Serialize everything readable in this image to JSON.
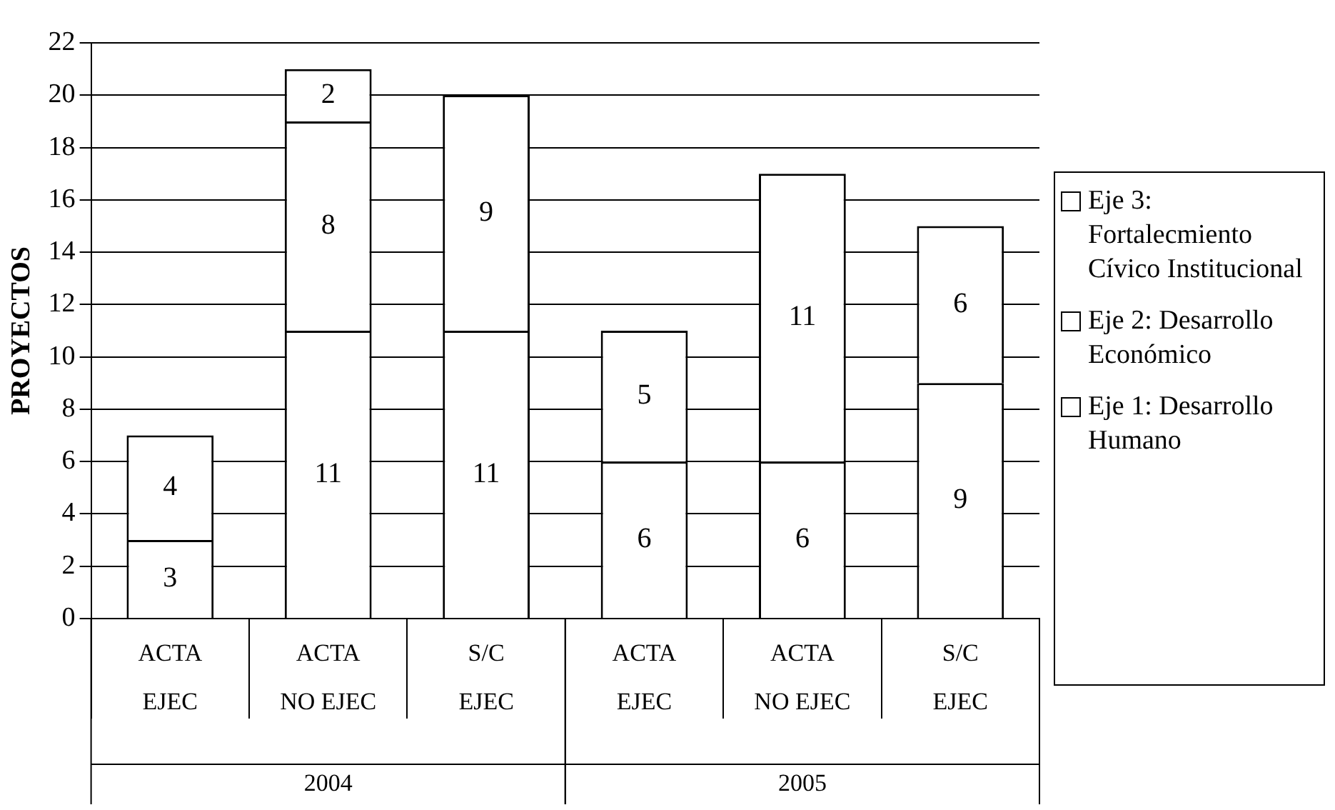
{
  "chart_data": {
    "type": "bar",
    "stacked": true,
    "ylabel": "PROYECTOS",
    "categories": [
      "ACTA\nEJEC",
      "ACTA\nNO EJEC",
      "S/C\nEJEC",
      "ACTA\nEJEC",
      "ACTA\nNO EJEC",
      "S/C\nEJEC"
    ],
    "annotations": [
      "2004",
      "2005"
    ],
    "series": [
      {
        "name": "Eje 1: Desarrollo Humano",
        "color": "#ffffff",
        "values": [
          3,
          11,
          11,
          6,
          6,
          9
        ]
      },
      {
        "name": "Eje 2: Desarrollo Económico",
        "color": "#ffffff",
        "values": [
          4,
          8,
          9,
          5,
          11,
          6
        ]
      },
      {
        "name": "Eje 3: Fortalecmiento Cívico Institucional",
        "color": "#ffffff",
        "values": [
          null,
          2,
          null,
          null,
          null,
          null
        ]
      }
    ],
    "ylim": [
      0,
      22
    ],
    "yticks": [
      0,
      2,
      4,
      6,
      8,
      10,
      12,
      14,
      16,
      18,
      20,
      22
    ],
    "grid": "y",
    "legend": "right",
    "data_labels": true
  }
}
